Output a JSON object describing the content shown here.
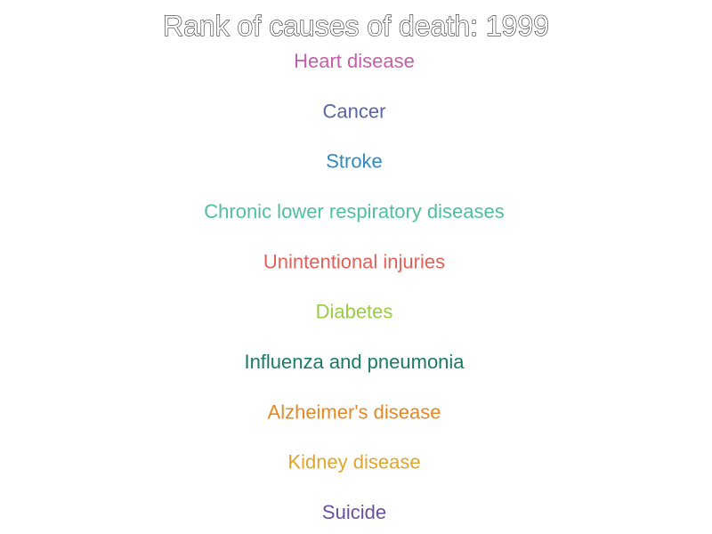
{
  "chart_data": {
    "type": "table",
    "title": "Rank of causes of death: 1999",
    "ranks": [
      {
        "rank": 1,
        "label": "Heart disease",
        "color": "#c45fa9"
      },
      {
        "rank": 2,
        "label": "Cancer",
        "color": "#5c65a3"
      },
      {
        "rank": 3,
        "label": "Stroke",
        "color": "#2e8bc0"
      },
      {
        "rank": 4,
        "label": "Chronic lower respiratory diseases",
        "color": "#4fbf9f"
      },
      {
        "rank": 5,
        "label": "Unintentional injuries",
        "color": "#e0605a"
      },
      {
        "rank": 6,
        "label": "Diabetes",
        "color": "#9acb45"
      },
      {
        "rank": 7,
        "label": "Influenza and pneumonia",
        "color": "#1a7a6a"
      },
      {
        "rank": 8,
        "label": "Alzheimer's disease",
        "color": "#e8871f"
      },
      {
        "rank": 9,
        "label": "Kidney disease",
        "color": "#e0a52a"
      },
      {
        "rank": 10,
        "label": "Suicide",
        "color": "#6b4ea0"
      }
    ]
  }
}
